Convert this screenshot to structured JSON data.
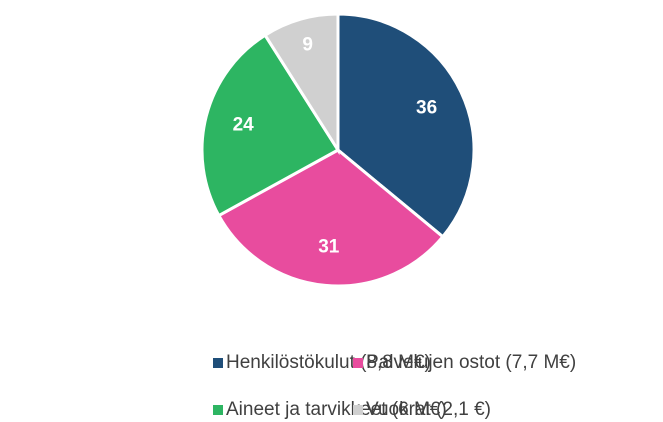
{
  "chart_data": {
    "type": "pie",
    "categories": [
      "Henkilöstökulut (8,8 M€)",
      "Palvelujen ostot (7,7 M€)",
      "Aineet ja tarvikkeet (6 M€)",
      "Vuokrat (2,1 €)"
    ],
    "values": [
      36,
      31,
      24,
      9
    ],
    "colors": [
      "#1f4e79",
      "#e84c9e",
      "#2db562",
      "#d0d0d0"
    ],
    "legend": "bottom"
  }
}
